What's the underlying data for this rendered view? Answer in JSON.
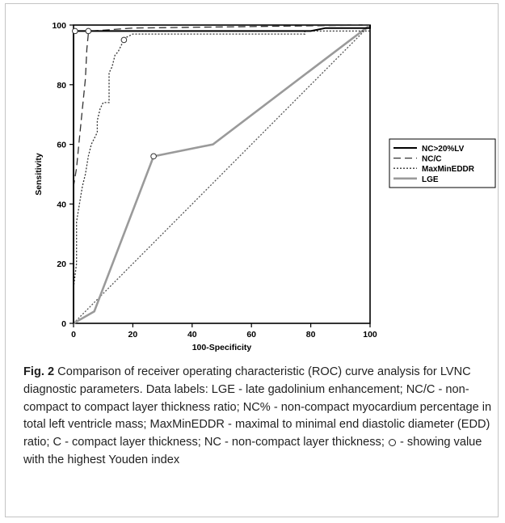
{
  "figure": {
    "label": "Fig. 2",
    "caption": "Comparison of receiver operating characteristic (ROC) curve analysis for LVNC diagnostic parameters. Data labels: LGE - late gadolinium enhancement; NC/C - non-compact to compact layer thickness ratio; NC% - non-compact myocardium percentage in total left ventricle mass; MaxMinEDDR - maximal to minimal end diastolic diameter (EDD) ratio; C - compact layer thickness; NC - non-compact layer thickness;",
    "caption_tail": "- showing value with the highest Youden index"
  },
  "chart_data": {
    "type": "line",
    "xlabel": "100-Specificity",
    "ylabel": "Sensitivity",
    "xlim": [
      0,
      100
    ],
    "ylim": [
      0,
      100
    ],
    "xticks": [
      0,
      20,
      40,
      60,
      80,
      100
    ],
    "yticks": [
      0,
      20,
      40,
      60,
      80,
      100
    ],
    "grid": false,
    "legend_position": "right",
    "series": [
      {
        "name": "NC>20%LV",
        "style": "solid",
        "color": "#000000",
        "points": [
          [
            0,
            0
          ],
          [
            0,
            98
          ],
          [
            1,
            98
          ],
          [
            5,
            98
          ],
          [
            20,
            98
          ],
          [
            40,
            98
          ],
          [
            60,
            98
          ],
          [
            80,
            98
          ],
          [
            85,
            99
          ],
          [
            100,
            99
          ],
          [
            100,
            100
          ]
        ],
        "youden_point": [
          0.5,
          98
        ]
      },
      {
        "name": "NC/C",
        "style": "dashed",
        "color": "#333333",
        "points": [
          [
            0,
            0
          ],
          [
            0,
            46
          ],
          [
            1,
            52
          ],
          [
            2,
            62
          ],
          [
            3,
            72
          ],
          [
            4,
            82
          ],
          [
            4.5,
            92
          ],
          [
            5,
            97
          ],
          [
            6,
            98
          ],
          [
            20,
            99
          ],
          [
            100,
            100
          ]
        ],
        "youden_point": [
          5,
          98
        ]
      },
      {
        "name": "MaxMinEDDR",
        "style": "dotted",
        "color": "#333333",
        "points": [
          [
            0,
            0
          ],
          [
            0,
            12
          ],
          [
            1,
            20
          ],
          [
            1,
            34
          ],
          [
            2,
            40
          ],
          [
            3,
            46
          ],
          [
            4,
            50
          ],
          [
            5,
            56
          ],
          [
            6,
            60
          ],
          [
            7,
            62
          ],
          [
            8,
            64
          ],
          [
            8,
            68
          ],
          [
            9,
            72
          ],
          [
            10,
            74
          ],
          [
            12,
            74
          ],
          [
            12,
            84
          ],
          [
            13,
            86
          ],
          [
            14,
            90
          ],
          [
            15,
            91
          ],
          [
            16,
            93
          ],
          [
            17,
            95
          ],
          [
            18,
            96
          ],
          [
            20,
            97
          ],
          [
            40,
            97
          ],
          [
            78,
            97
          ],
          [
            78,
            98
          ],
          [
            100,
            98
          ],
          [
            100,
            100
          ]
        ],
        "youden_point": [
          17,
          95
        ]
      },
      {
        "name": "LGE",
        "style": "solid",
        "color": "#9a9a9a",
        "points": [
          [
            0,
            0
          ],
          [
            7,
            4
          ],
          [
            27,
            56
          ],
          [
            47,
            60
          ],
          [
            100,
            100
          ]
        ],
        "youden_point": [
          27,
          56
        ]
      },
      {
        "name": "",
        "style": "dotted",
        "color": "#555555",
        "points": [
          [
            0,
            0
          ],
          [
            100,
            100
          ]
        ]
      }
    ]
  }
}
